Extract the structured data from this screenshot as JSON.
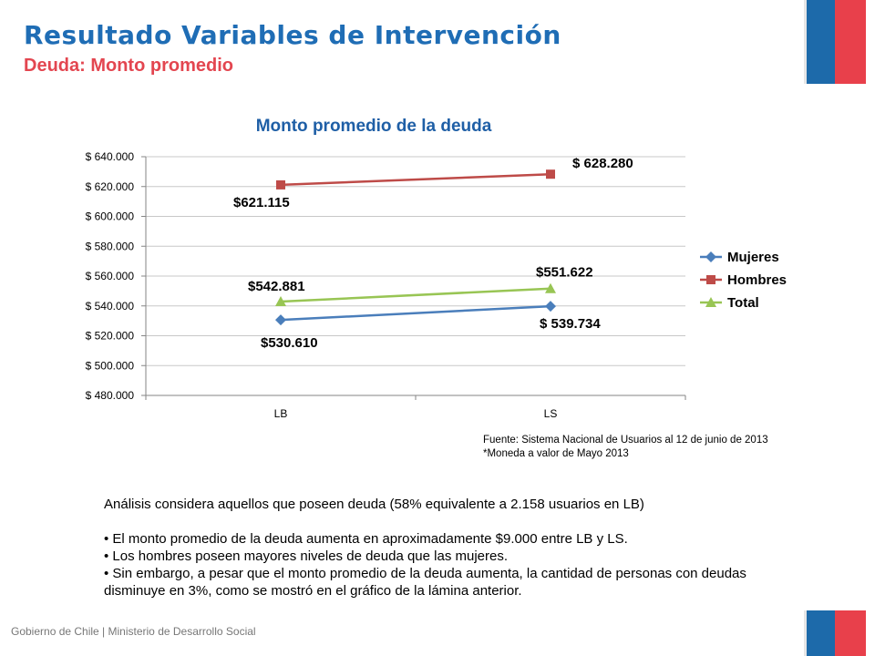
{
  "header": {
    "title": "Resultado Variables de Intervención",
    "subtitle": "Deuda: Monto promedio"
  },
  "colors": {
    "blue": "#4a7ebb",
    "red": "#be4b48",
    "green": "#98c554",
    "title_blue": "#1f6db5",
    "subtitle_red": "#e34650"
  },
  "chart_data": {
    "type": "line",
    "title": "Monto promedio de la deuda",
    "categories": [
      "LB",
      "LS"
    ],
    "ylim": [
      480000,
      640000
    ],
    "yticks": [
      480000,
      500000,
      520000,
      540000,
      560000,
      580000,
      600000,
      620000,
      640000
    ],
    "ytick_labels": [
      "$ 480.000",
      "$ 500.000",
      "$ 520.000",
      "$ 540.000",
      "$ 560.000",
      "$ 580.000",
      "$ 600.000",
      "$ 620.000",
      "$ 640.000"
    ],
    "grid": true,
    "legend_position": "right",
    "series": [
      {
        "name": "Mujeres",
        "values": [
          530610,
          539734
        ],
        "labels": [
          "$530.610",
          "$ 539.734"
        ],
        "color": "#4a7ebb",
        "marker": "diamond"
      },
      {
        "name": "Hombres",
        "values": [
          621115,
          628280
        ],
        "labels": [
          "$621.115",
          "$ 628.280"
        ],
        "color": "#be4b48",
        "marker": "square"
      },
      {
        "name": "Total",
        "values": [
          542881,
          551622
        ],
        "labels": [
          "$542.881",
          "$551.622"
        ],
        "color": "#98c554",
        "marker": "triangle"
      }
    ]
  },
  "source": {
    "line1": "Fuente: Sistema Nacional de Usuarios al 12 de junio de 2013",
    "line2": "*Moneda a valor de Mayo 2013"
  },
  "analysis": {
    "intro": "Análisis considera aquellos que poseen deuda (58% equivalente a 2.158 usuarios en LB)",
    "bullets": [
      "• El monto promedio de la deuda aumenta en aproximadamente $9.000 entre LB y LS.",
      "• Los hombres poseen mayores niveles de deuda que las mujeres.",
      "• Sin embargo, a pesar que el monto promedio de la deuda aumenta, la cantidad de personas con deudas disminuye en 3%, como se mostró en el gráfico de la lámina anterior."
    ]
  },
  "footer": {
    "text": "Gobierno de Chile | Ministerio de Desarrollo Social"
  }
}
